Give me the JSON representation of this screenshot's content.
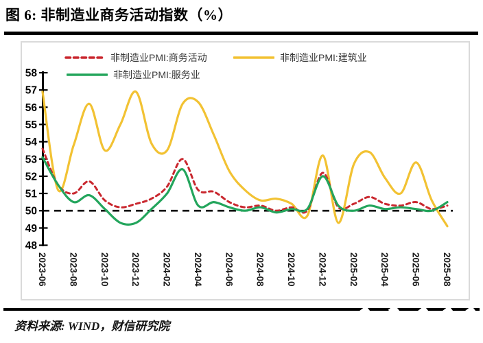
{
  "title": "图 6: 非制造业商务活动指数（%）",
  "source": "资料来源: WIND，财信研究院",
  "colors": {
    "business_red": "#C9272E",
    "services_green": "#23A55C",
    "construction_yellow": "#F2C233",
    "baseline_black": "#000000",
    "box_border": "#DADADA"
  },
  "chart_data": {
    "type": "line",
    "title": "非制造业商务活动指数（%）",
    "ylabel": "",
    "xlabel": "",
    "ylim": [
      48,
      58
    ],
    "y_ticks": [
      58,
      57,
      56,
      55,
      54,
      53,
      52,
      51,
      50,
      49,
      48
    ],
    "baseline": 50,
    "grid": false,
    "legend_position": "top",
    "smoothed": true,
    "x_label_every": 2,
    "x": [
      "2023-06",
      "2023-07",
      "2023-08",
      "2023-09",
      "2023-10",
      "2023-11",
      "2023-12",
      "2024-01",
      "2024-02",
      "2024-03",
      "2024-04",
      "2024-05",
      "2024-06",
      "2024-07",
      "2024-08",
      "2024-09",
      "2024-10",
      "2024-11",
      "2024-12",
      "2025-01",
      "2025-02",
      "2025-03",
      "2025-04",
      "2025-05",
      "2025-06",
      "2025-07",
      "2025-08"
    ],
    "series": [
      {
        "name": "非制造业PMI:商务活动",
        "color": "#C9272E",
        "style": "dashed",
        "values": [
          53.6,
          51.5,
          51.0,
          51.7,
          50.6,
          50.2,
          50.4,
          50.7,
          51.4,
          53.0,
          51.2,
          51.1,
          50.5,
          50.2,
          50.3,
          50.0,
          50.2,
          50.0,
          52.2,
          50.2,
          50.4,
          50.8,
          50.4,
          50.3,
          50.5,
          50.1,
          50.3
        ]
      },
      {
        "name": "非制造业PMI:服务业",
        "color": "#23A55C",
        "style": "solid",
        "values": [
          53.1,
          51.5,
          50.5,
          50.9,
          50.1,
          49.3,
          49.3,
          50.1,
          51.0,
          52.4,
          50.3,
          50.5,
          50.2,
          50.0,
          50.2,
          49.9,
          50.1,
          50.1,
          52.0,
          50.3,
          50.0,
          50.3,
          50.1,
          50.2,
          50.1,
          50.0,
          50.5
        ]
      },
      {
        "name": "非制造业PMI:建筑业",
        "color": "#F2C233",
        "style": "solid",
        "values": [
          56.9,
          51.2,
          53.8,
          56.2,
          53.5,
          55.0,
          56.9,
          53.9,
          53.5,
          56.2,
          56.3,
          54.4,
          52.3,
          51.2,
          50.6,
          50.7,
          50.4,
          49.7,
          53.2,
          49.3,
          52.7,
          53.4,
          51.9,
          51.0,
          52.8,
          50.6,
          49.1
        ]
      }
    ]
  }
}
